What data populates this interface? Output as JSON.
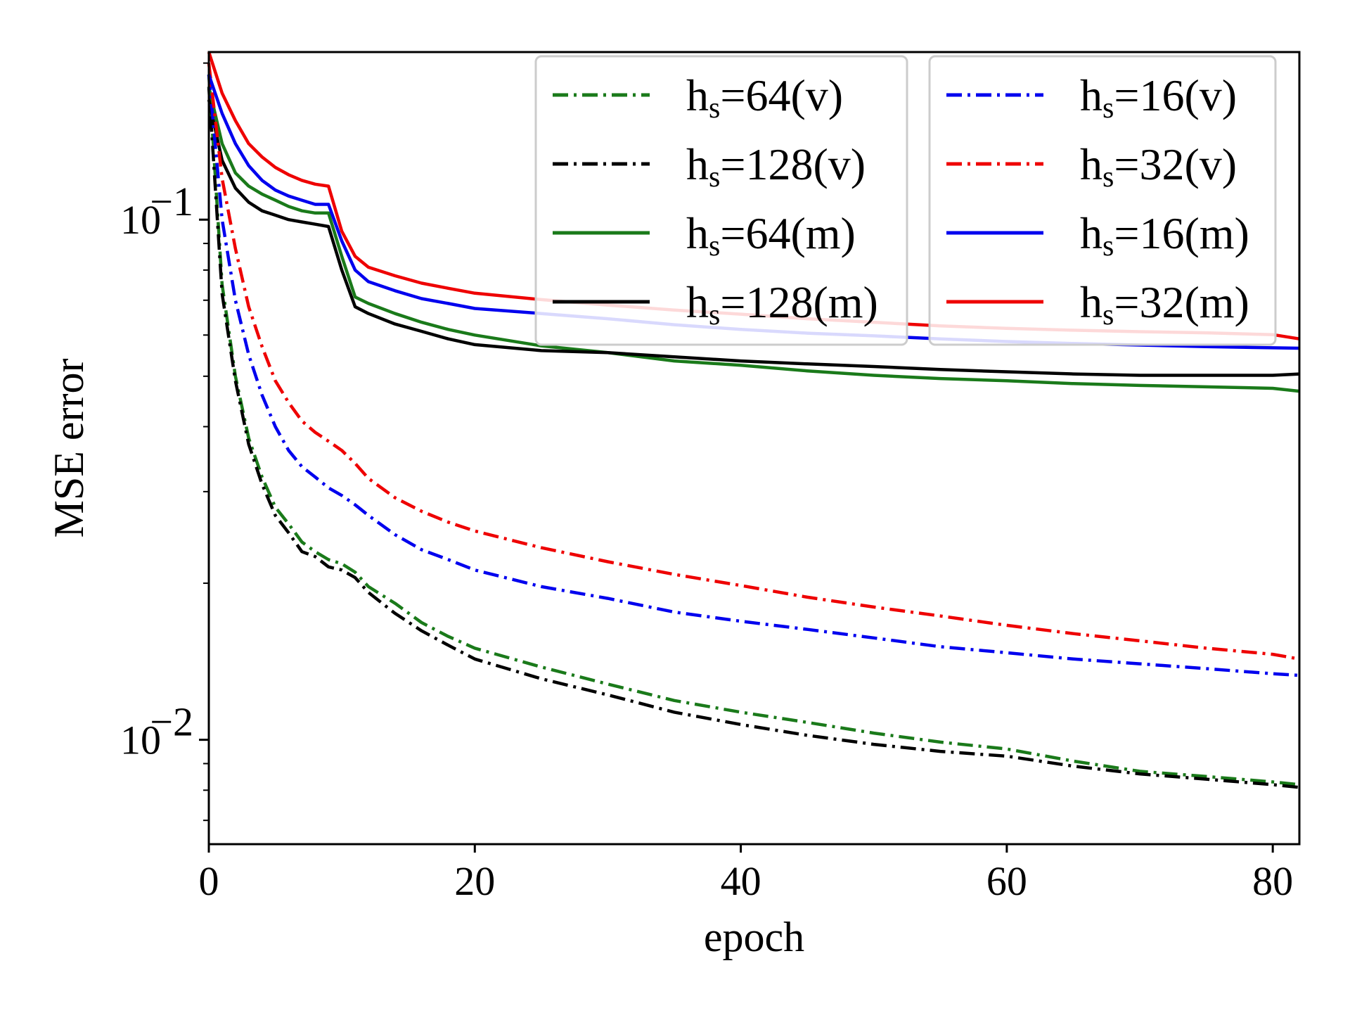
{
  "chart_data": {
    "type": "line",
    "title": "",
    "xlabel": "epoch",
    "ylabel": "MSE error",
    "xlim": [
      0,
      82
    ],
    "ylim": [
      0.0063,
      0.21
    ],
    "yscale": "log",
    "x_ticks": [
      0,
      20,
      40,
      60,
      80
    ],
    "x_tick_labels": [
      "0",
      "20",
      "40",
      "60",
      "80"
    ],
    "y_ticks": [
      {
        "value": 0.01,
        "base": "10",
        "exp": "−2"
      },
      {
        "value": 0.1,
        "base": "10",
        "exp": "−1"
      }
    ],
    "x": [
      0,
      1,
      2,
      3,
      4,
      5,
      6,
      7,
      8,
      9,
      10,
      11,
      12,
      14,
      16,
      18,
      20,
      25,
      30,
      35,
      40,
      45,
      50,
      55,
      60,
      65,
      70,
      75,
      80,
      82
    ],
    "series": [
      {
        "name": "hs=64(v)",
        "prefix": "h",
        "sub": "s",
        "suffix": "=64(v)",
        "color": "#1a7a1a",
        "style": "dashdot",
        "values": [
          0.19,
          0.075,
          0.05,
          0.038,
          0.032,
          0.028,
          0.026,
          0.024,
          0.023,
          0.0222,
          0.0218,
          0.021,
          0.0197,
          0.0183,
          0.0168,
          0.0158,
          0.015,
          0.0138,
          0.0128,
          0.0119,
          0.0113,
          0.0108,
          0.0103,
          0.0099,
          0.0096,
          0.0091,
          0.0087,
          0.0085,
          0.0083,
          0.0082
        ]
      },
      {
        "name": "hs=128(v)",
        "prefix": "h",
        "sub": "s",
        "suffix": "=128(v)",
        "color": "#000000",
        "style": "dashdot",
        "values": [
          0.18,
          0.072,
          0.049,
          0.037,
          0.031,
          0.027,
          0.025,
          0.023,
          0.0225,
          0.0215,
          0.0212,
          0.0205,
          0.0192,
          0.0175,
          0.0162,
          0.0152,
          0.0143,
          0.0131,
          0.0122,
          0.0113,
          0.0107,
          0.0102,
          0.0098,
          0.0095,
          0.0093,
          0.0089,
          0.0086,
          0.0084,
          0.0082,
          0.0081
        ]
      },
      {
        "name": "hs=64(m)",
        "prefix": "h",
        "sub": "s",
        "suffix": "=64(m)",
        "color": "#1a7a1a",
        "style": "solid",
        "values": [
          0.18,
          0.14,
          0.123,
          0.116,
          0.112,
          0.109,
          0.106,
          0.104,
          0.103,
          0.103,
          0.085,
          0.071,
          0.069,
          0.066,
          0.0635,
          0.0615,
          0.06,
          0.0572,
          0.0555,
          0.0535,
          0.0525,
          0.0512,
          0.0502,
          0.0495,
          0.049,
          0.0484,
          0.048,
          0.0477,
          0.0474,
          0.0468
        ]
      },
      {
        "name": "hs=128(m)",
        "prefix": "h",
        "sub": "s",
        "suffix": "=128(m)",
        "color": "#000000",
        "style": "solid",
        "values": [
          0.17,
          0.13,
          0.115,
          0.108,
          0.104,
          0.102,
          0.1,
          0.099,
          0.098,
          0.097,
          0.08,
          0.068,
          0.066,
          0.063,
          0.061,
          0.059,
          0.0575,
          0.056,
          0.0555,
          0.0545,
          0.0535,
          0.0528,
          0.0522,
          0.0515,
          0.051,
          0.0505,
          0.0502,
          0.0502,
          0.0502,
          0.0505
        ]
      },
      {
        "name": "hs=16(v)",
        "prefix": "h",
        "sub": "s",
        "suffix": "=16(v)",
        "color": "#0000ee",
        "style": "dashdot",
        "values": [
          0.19,
          0.1,
          0.07,
          0.055,
          0.046,
          0.04,
          0.036,
          0.0335,
          0.032,
          0.0305,
          0.0295,
          0.0283,
          0.027,
          0.0248,
          0.0232,
          0.0222,
          0.0212,
          0.0197,
          0.0187,
          0.0176,
          0.0169,
          0.0163,
          0.0157,
          0.0151,
          0.0147,
          0.0143,
          0.014,
          0.0137,
          0.0134,
          0.0133
        ]
      },
      {
        "name": "hs=32(v)",
        "prefix": "h",
        "sub": "s",
        "suffix": "=32(v)",
        "color": "#ee0000",
        "style": "dashdot",
        "values": [
          0.2,
          0.12,
          0.088,
          0.068,
          0.057,
          0.049,
          0.0445,
          0.041,
          0.039,
          0.0375,
          0.036,
          0.034,
          0.0318,
          0.0292,
          0.0275,
          0.0262,
          0.0252,
          0.0234,
          0.022,
          0.0208,
          0.0198,
          0.0188,
          0.018,
          0.0173,
          0.0166,
          0.016,
          0.0155,
          0.015,
          0.0146,
          0.0143
        ]
      },
      {
        "name": "hs=16(m)",
        "prefix": "h",
        "sub": "s",
        "suffix": "=16(m)",
        "color": "#0000ee",
        "style": "solid",
        "values": [
          0.19,
          0.16,
          0.14,
          0.127,
          0.119,
          0.114,
          0.111,
          0.109,
          0.107,
          0.107,
          0.091,
          0.08,
          0.076,
          0.073,
          0.0705,
          0.069,
          0.0675,
          0.066,
          0.0645,
          0.0628,
          0.0615,
          0.0605,
          0.0598,
          0.059,
          0.0583,
          0.0578,
          0.0574,
          0.057,
          0.0567,
          0.0566
        ]
      },
      {
        "name": "hs=32(m)",
        "prefix": "h",
        "sub": "s",
        "suffix": "=32(m)",
        "color": "#ee0000",
        "style": "solid",
        "values": [
          0.21,
          0.175,
          0.155,
          0.14,
          0.132,
          0.126,
          0.122,
          0.119,
          0.117,
          0.116,
          0.095,
          0.085,
          0.081,
          0.078,
          0.0755,
          0.0738,
          0.0722,
          0.0702,
          0.0685,
          0.067,
          0.0658,
          0.0645,
          0.0635,
          0.0625,
          0.0618,
          0.0613,
          0.0609,
          0.0606,
          0.0601,
          0.059
        ]
      }
    ],
    "legend": {
      "columns": [
        [
          "hs=64(v)",
          "hs=128(v)",
          "hs=64(m)",
          "hs=128(m)"
        ],
        [
          "hs=16(v)",
          "hs=32(v)",
          "hs=16(m)",
          "hs=32(m)"
        ]
      ],
      "placement": "top-right"
    },
    "grid": false
  }
}
